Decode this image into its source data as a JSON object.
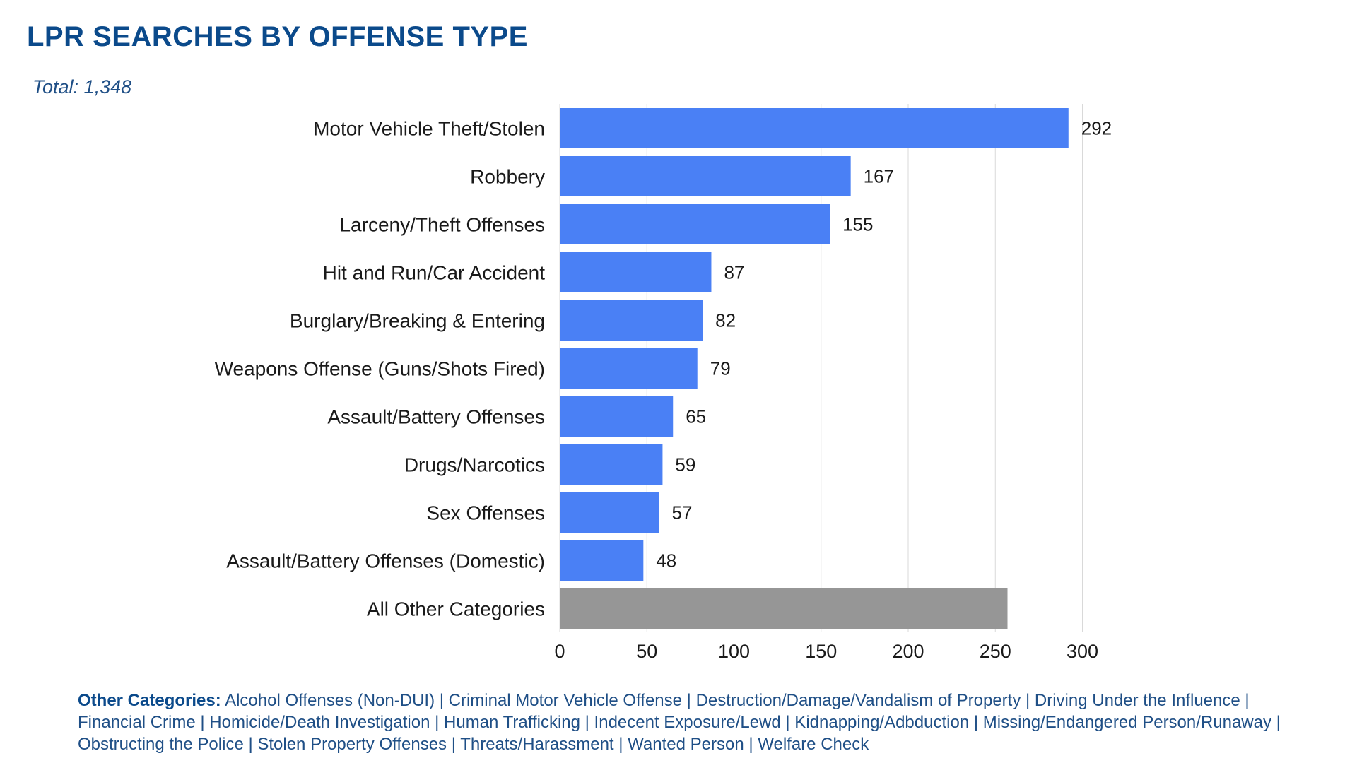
{
  "title": "LPR SEARCHES BY OFFENSE TYPE",
  "subtitle": "Total: 1,348",
  "colors": {
    "primary": "#4a80f5",
    "other": "#969696",
    "title": "#0b4a8b",
    "text": "#1a1a1a"
  },
  "chart_data": {
    "type": "bar",
    "orientation": "horizontal",
    "categories": [
      "Motor Vehicle Theft/Stolen",
      "Robbery",
      "Larceny/Theft Offenses",
      "Hit and Run/Car Accident",
      "Burglary/Breaking & Entering",
      "Weapons Offense (Guns/Shots Fired)",
      "Assault/Battery Offenses",
      "Drugs/Narcotics",
      "Sex Offenses",
      "Assault/Battery Offenses (Domestic)",
      "All Other Categories"
    ],
    "values": [
      292,
      167,
      155,
      87,
      82,
      79,
      65,
      59,
      57,
      48,
      257
    ],
    "data_labels": [
      "292",
      "167",
      "155",
      "87",
      "82",
      "79",
      "65",
      "59",
      "57",
      "48",
      ""
    ],
    "xticks": [
      "0",
      "50",
      "100",
      "150",
      "200",
      "250",
      "300"
    ],
    "xlim": [
      0,
      300
    ],
    "grid": "vertical",
    "legend": "none"
  },
  "footnote": {
    "label": "Other Categories:",
    "text": " Alcohol Offenses (Non-DUI) | Criminal Motor Vehicle Offense | Destruction/Damage/Vandalism of Property | Driving Under the Influence | Financial Crime | Homicide/Death Investigation | Human Trafficking | Indecent Exposure/Lewd | Kidnapping/Adbduction | Missing/Endangered Person/Runaway | Obstructing the Police | Stolen Property Offenses | Threats/Harassment | Wanted Person | Welfare Check"
  }
}
